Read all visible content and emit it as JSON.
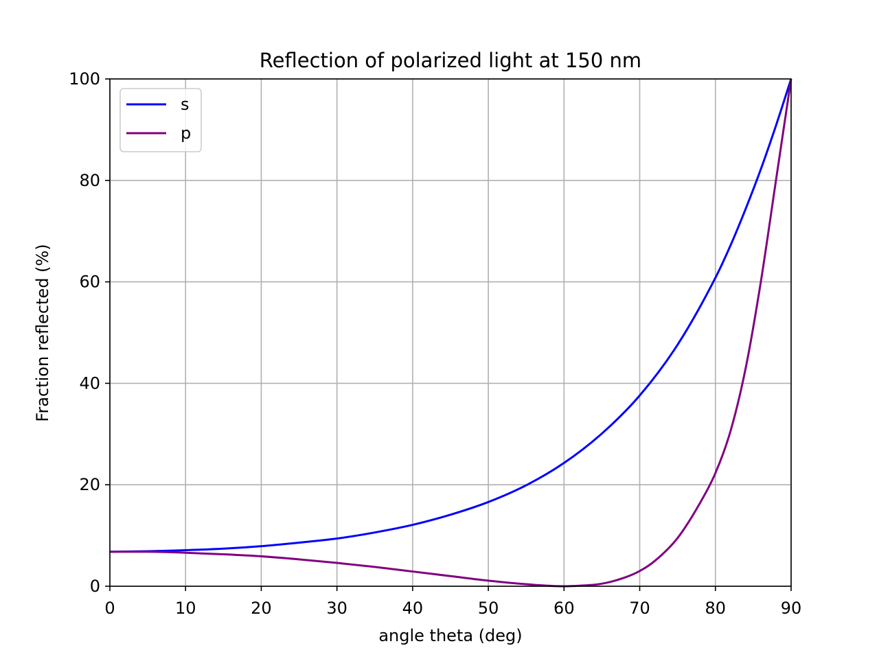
{
  "chart_data": {
    "type": "line",
    "title": "Reflection of polarized light at 150 nm",
    "xlabel": "angle theta (deg)",
    "ylabel": "Fraction reflected (%)",
    "xlim": [
      0,
      90
    ],
    "ylim": [
      0,
      100
    ],
    "xticks": [
      0,
      10,
      20,
      30,
      40,
      50,
      60,
      70,
      80,
      90
    ],
    "xtick_labels": [
      "0",
      "10",
      "20",
      "30",
      "40",
      "50",
      "60",
      "70",
      "80",
      "90"
    ],
    "yticks": [
      0,
      20,
      40,
      60,
      80,
      100
    ],
    "ytick_labels": [
      "0",
      "20",
      "40",
      "60",
      "80",
      "100"
    ],
    "grid": true,
    "legend_position": "upper-left",
    "series": [
      {
        "name": "s",
        "color": "#0000ff",
        "x": [
          0,
          5,
          10,
          15,
          20,
          25,
          30,
          35,
          40,
          45,
          50,
          55,
          60,
          65,
          70,
          75,
          80,
          82,
          84,
          86,
          88,
          90
        ],
        "values": [
          6.8,
          6.9,
          7.1,
          7.4,
          7.9,
          8.6,
          9.4,
          10.6,
          12.1,
          14.1,
          16.6,
          19.9,
          24.3,
          30.1,
          37.6,
          47.6,
          60.8,
          67.2,
          74.4,
          82.2,
          90.8,
          100
        ]
      },
      {
        "name": "p",
        "color": "#800080",
        "x": [
          0,
          5,
          10,
          15,
          20,
          25,
          30,
          35,
          40,
          45,
          50,
          55,
          60,
          62,
          65,
          68,
          70,
          72,
          75,
          78,
          80,
          82,
          84,
          86,
          88,
          90
        ],
        "values": [
          6.8,
          6.8,
          6.6,
          6.3,
          5.9,
          5.3,
          4.6,
          3.8,
          2.9,
          2.0,
          1.1,
          0.4,
          0.0,
          0.1,
          0.5,
          1.7,
          3.0,
          5.0,
          9.5,
          16.5,
          22.3,
          30.6,
          43.0,
          60.0,
          80.0,
          100
        ]
      }
    ]
  }
}
